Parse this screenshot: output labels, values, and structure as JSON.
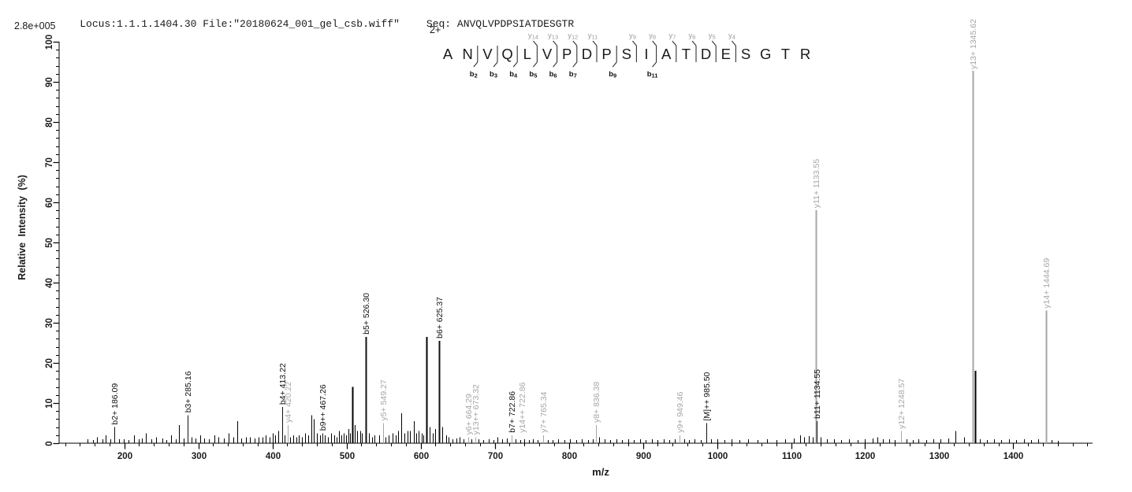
{
  "header": {
    "locus_file": "Locus:1.1.1.1404.30 File:\"20180624_001_gel_csb.wiff\"",
    "seq": "Seq: ANVQLVPDPSIATDESGTR"
  },
  "y_axis": {
    "scale_label": "2.8e+005",
    "title": "Relative Intensity (%)",
    "ticks": [
      0,
      10,
      20,
      30,
      40,
      50,
      60,
      70,
      80,
      90,
      100
    ],
    "minor_step": 2
  },
  "x_axis": {
    "title": "m/z",
    "major_ticks": [
      200,
      300,
      400,
      500,
      600,
      700,
      800,
      900,
      1000,
      1100,
      1200,
      1300,
      1400
    ],
    "minor_step": 20
  },
  "sequence_panel": {
    "charge": "2+",
    "residues": [
      "A",
      "N",
      "V",
      "Q",
      "L",
      "V",
      "P",
      "D",
      "P",
      "S",
      "I",
      "A",
      "T",
      "D",
      "E",
      "S",
      "G",
      "T",
      "R"
    ],
    "boundaries": [
      {
        "after": 2,
        "b": "b2",
        "y": null
      },
      {
        "after": 3,
        "b": "b3",
        "y": null
      },
      {
        "after": 4,
        "b": "b4",
        "y": null
      },
      {
        "after": 5,
        "b": "b5",
        "y": "y14"
      },
      {
        "after": 6,
        "b": "b6",
        "y": "y13"
      },
      {
        "after": 7,
        "b": "b7",
        "y": "y12"
      },
      {
        "after": 8,
        "b": null,
        "y": "y11"
      },
      {
        "after": 9,
        "b": "b9",
        "y": null
      },
      {
        "after": 10,
        "b": null,
        "y": "y9"
      },
      {
        "after": 11,
        "b": "b11",
        "y": "y8"
      },
      {
        "after": 12,
        "b": null,
        "y": "y7"
      },
      {
        "after": 13,
        "b": null,
        "y": "y6"
      },
      {
        "after": 14,
        "b": null,
        "y": "y5"
      },
      {
        "after": 15,
        "b": null,
        "y": "y4"
      }
    ]
  },
  "chart_data": {
    "type": "bar",
    "subtype": "ms2-fragmentation-spectrum",
    "xlabel": "m/z",
    "ylabel": "Relative Intensity (%)",
    "xlim": [
      112,
      1507
    ],
    "ylim": [
      0,
      100
    ],
    "grid": false,
    "base_peak_intensity": "2.8e+005",
    "colors": {
      "b_ion": "#111111",
      "y_ion": "#a6a6a6",
      "axis": "#000000",
      "noise": "#000000"
    },
    "labeled_peaks": [
      {
        "ion": "b2+",
        "mz": 186.09,
        "intensity": 4,
        "label": "b2+ 186.09",
        "series": "b"
      },
      {
        "ion": "b3+",
        "mz": 285.16,
        "intensity": 7,
        "label": "b3+ 285.16",
        "series": "b"
      },
      {
        "ion": "b4+",
        "mz": 413.22,
        "intensity": 9,
        "label": "b4+ 413.22",
        "series": "b"
      },
      {
        "ion": "y4+",
        "mz": 420.22,
        "intensity": 4.5,
        "label": "y4+ 420.22",
        "series": "y"
      },
      {
        "ion": "b9++",
        "mz": 467.26,
        "intensity": 2.5,
        "label": "b9++ 467.26",
        "series": "b"
      },
      {
        "ion": "b5+",
        "mz": 526.3,
        "intensity": 26.5,
        "label": "b5+ 526.30",
        "series": "b"
      },
      {
        "ion": "y5+",
        "mz": 549.27,
        "intensity": 5,
        "label": "y5+ 549.27",
        "series": "y"
      },
      {
        "ion": "b6+",
        "mz": 625.37,
        "intensity": 25.5,
        "label": "b6+ 625.37",
        "series": "b"
      },
      {
        "ion": "y6+",
        "mz": 664.29,
        "intensity": 1.5,
        "label": "y6+ 664.29",
        "series": "y"
      },
      {
        "ion": "y13++",
        "mz": 673.32,
        "intensity": 1.5,
        "label": "y13++ 673.32",
        "series": "y"
      },
      {
        "ion": "b7+",
        "mz": 722.86,
        "intensity": 2,
        "label": "b7+ 722.86",
        "series": "b"
      },
      {
        "ion": "y14++",
        "mz": 722.86,
        "intensity": 2,
        "label": "y14++ 722.86",
        "series": "y",
        "label_dx": 13
      },
      {
        "ion": "y7+",
        "mz": 765.34,
        "intensity": 2,
        "label": "y7+ 765.34",
        "series": "y"
      },
      {
        "ion": "y8+",
        "mz": 836.38,
        "intensity": 4.5,
        "label": "y8+ 836.38",
        "series": "y"
      },
      {
        "ion": "y9+",
        "mz": 949.46,
        "intensity": 2,
        "label": "y9+ 949.46",
        "series": "y"
      },
      {
        "ion": "[M]++",
        "mz": 985.5,
        "intensity": 5,
        "label": "[M]++ 985.50",
        "series": "b"
      },
      {
        "ion": "y11+",
        "mz": 1133.55,
        "intensity": 58,
        "label": "y11+ 1133.55",
        "series": "y"
      },
      {
        "ion": "b11+",
        "mz": 1134.55,
        "intensity": 5.5,
        "label": "b11+ 1134.55",
        "series": "b"
      },
      {
        "ion": "y12+",
        "mz": 1248.57,
        "intensity": 3,
        "label": "y12+ 1248.57",
        "series": "y"
      },
      {
        "ion": "y13+",
        "mz": 1345.62,
        "intensity": 100,
        "label": "y13+ 1345.62",
        "series": "y"
      },
      {
        "ion": "y14+",
        "mz": 1444.69,
        "intensity": 33,
        "label": "y14+ 1444.69",
        "series": "y"
      }
    ],
    "unlabeled_major_peaks": [
      [
        508,
        14
      ],
      [
        608,
        26.5
      ],
      [
        1348,
        18
      ]
    ],
    "noise_peaks": [
      [
        150,
        1
      ],
      [
        158,
        0.8
      ],
      [
        163,
        1.5
      ],
      [
        170,
        1
      ],
      [
        175,
        2
      ],
      [
        181,
        1
      ],
      [
        193,
        1
      ],
      [
        199,
        1
      ],
      [
        206,
        0.8
      ],
      [
        213,
        2
      ],
      [
        219,
        1
      ],
      [
        224,
        1.2
      ],
      [
        229,
        2.5
      ],
      [
        236,
        1
      ],
      [
        243,
        1.5
      ],
      [
        251,
        1.2
      ],
      [
        257,
        0.8
      ],
      [
        263,
        2
      ],
      [
        269,
        1
      ],
      [
        274,
        4.5
      ],
      [
        280,
        1.2
      ],
      [
        291,
        1.5
      ],
      [
        296,
        1.2
      ],
      [
        302,
        2
      ],
      [
        308,
        1.2
      ],
      [
        314,
        1
      ],
      [
        322,
        2
      ],
      [
        327,
        1.5
      ],
      [
        334,
        1.2
      ],
      [
        341,
        2.5
      ],
      [
        347,
        1.5
      ],
      [
        352,
        5.5
      ],
      [
        358,
        1.2
      ],
      [
        364,
        1.5
      ],
      [
        370,
        1.5
      ],
      [
        376,
        1.2
      ],
      [
        381,
        1.5
      ],
      [
        386,
        1.5
      ],
      [
        391,
        2
      ],
      [
        396,
        1.5
      ],
      [
        400,
        2.5
      ],
      [
        404,
        2
      ],
      [
        408,
        3
      ],
      [
        416,
        2
      ],
      [
        424,
        1.5
      ],
      [
        428,
        2
      ],
      [
        432,
        1.5
      ],
      [
        436,
        2
      ],
      [
        440,
        1.5
      ],
      [
        444,
        2.5
      ],
      [
        448,
        2
      ],
      [
        452,
        7
      ],
      [
        456,
        6
      ],
      [
        460,
        2.5
      ],
      [
        464,
        2
      ],
      [
        471,
        2
      ],
      [
        475,
        1.5
      ],
      [
        479,
        2.5
      ],
      [
        483,
        2
      ],
      [
        487,
        1.5
      ],
      [
        490,
        3
      ],
      [
        493,
        2
      ],
      [
        496,
        2.5
      ],
      [
        499,
        2
      ],
      [
        502,
        3.5
      ],
      [
        505,
        2.5
      ],
      [
        511,
        4.5
      ],
      [
        514,
        3
      ],
      [
        518,
        3
      ],
      [
        521,
        2.5
      ],
      [
        530,
        2.5
      ],
      [
        534,
        1.5
      ],
      [
        538,
        2
      ],
      [
        544,
        2
      ],
      [
        553,
        1.5
      ],
      [
        557,
        2
      ],
      [
        562,
        2.5
      ],
      [
        566,
        2
      ],
      [
        570,
        3
      ],
      [
        574,
        7.5
      ],
      [
        578,
        2.5
      ],
      [
        582,
        3
      ],
      [
        586,
        3
      ],
      [
        591,
        5.5
      ],
      [
        594,
        2.5
      ],
      [
        597,
        3
      ],
      [
        601,
        2.5
      ],
      [
        604,
        2
      ],
      [
        612,
        4
      ],
      [
        616,
        2.5
      ],
      [
        620,
        3.5
      ],
      [
        629,
        4
      ],
      [
        634,
        2
      ],
      [
        638,
        1.5
      ],
      [
        643,
        1
      ],
      [
        648,
        1.2
      ],
      [
        653,
        1.5
      ],
      [
        658,
        1
      ],
      [
        668,
        1
      ],
      [
        678,
        1
      ],
      [
        684,
        0.8
      ],
      [
        692,
        1
      ],
      [
        698,
        0.8
      ],
      [
        704,
        1.5
      ],
      [
        710,
        1
      ],
      [
        716,
        1.2
      ],
      [
        728,
        1
      ],
      [
        734,
        0.8
      ],
      [
        740,
        1
      ],
      [
        746,
        0.8
      ],
      [
        752,
        1
      ],
      [
        758,
        0.8
      ],
      [
        772,
        0.8
      ],
      [
        778,
        0.8
      ],
      [
        786,
        1
      ],
      [
        794,
        0.8
      ],
      [
        802,
        1
      ],
      [
        810,
        0.8
      ],
      [
        818,
        1
      ],
      [
        826,
        0.8
      ],
      [
        832,
        1
      ],
      [
        841,
        1.5
      ],
      [
        848,
        1
      ],
      [
        856,
        0.8
      ],
      [
        864,
        1
      ],
      [
        872,
        0.8
      ],
      [
        880,
        1
      ],
      [
        888,
        0.8
      ],
      [
        896,
        1
      ],
      [
        904,
        0.8
      ],
      [
        912,
        1
      ],
      [
        920,
        0.8
      ],
      [
        928,
        1
      ],
      [
        936,
        0.8
      ],
      [
        943,
        1
      ],
      [
        956,
        1
      ],
      [
        962,
        0.8
      ],
      [
        970,
        1
      ],
      [
        978,
        0.8
      ],
      [
        992,
        1
      ],
      [
        1000,
        1
      ],
      [
        1010,
        0.8
      ],
      [
        1020,
        1
      ],
      [
        1030,
        0.8
      ],
      [
        1042,
        1
      ],
      [
        1055,
        0.8
      ],
      [
        1068,
        1
      ],
      [
        1080,
        0.8
      ],
      [
        1092,
        1
      ],
      [
        1104,
        1.2
      ],
      [
        1112,
        2
      ],
      [
        1118,
        1.5
      ],
      [
        1124,
        1.8
      ],
      [
        1129,
        1.5
      ],
      [
        1140,
        1.5
      ],
      [
        1148,
        1
      ],
      [
        1158,
        1
      ],
      [
        1168,
        0.8
      ],
      [
        1178,
        1
      ],
      [
        1190,
        0.8
      ],
      [
        1200,
        1
      ],
      [
        1210,
        1.2
      ],
      [
        1216,
        1.5
      ],
      [
        1224,
        1
      ],
      [
        1232,
        1
      ],
      [
        1240,
        0.8
      ],
      [
        1256,
        1
      ],
      [
        1264,
        0.8
      ],
      [
        1272,
        1
      ],
      [
        1282,
        0.8
      ],
      [
        1292,
        1
      ],
      [
        1302,
        1
      ],
      [
        1312,
        1.2
      ],
      [
        1322,
        3
      ],
      [
        1334,
        1.5
      ],
      [
        1355,
        1
      ],
      [
        1364,
        0.8
      ],
      [
        1374,
        1
      ],
      [
        1384,
        0.8
      ],
      [
        1394,
        1
      ],
      [
        1404,
        0.8
      ],
      [
        1414,
        1
      ],
      [
        1424,
        0.8
      ],
      [
        1434,
        1
      ],
      [
        1452,
        0.8
      ],
      [
        1460,
        0.6
      ]
    ]
  }
}
